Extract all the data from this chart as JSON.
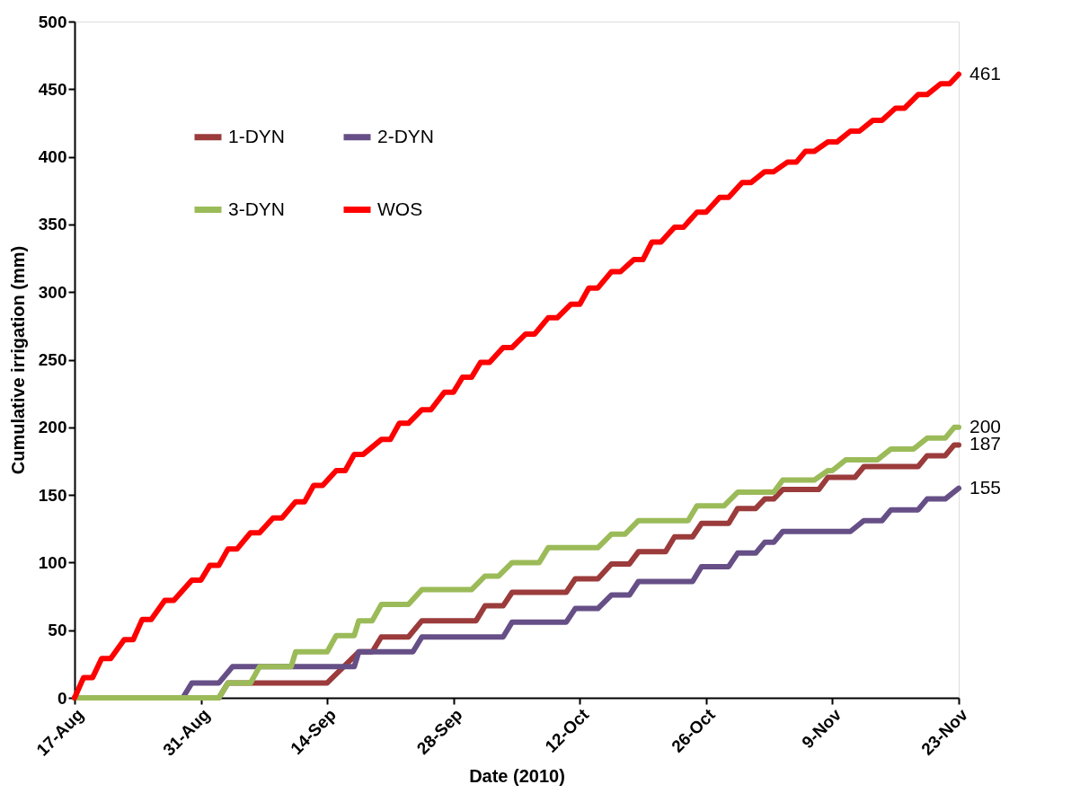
{
  "chart_data": {
    "type": "line",
    "xlabel": "Date (2010)",
    "ylabel": "Cumulative irrigation (mm)",
    "xlim": [
      "2010-08-17",
      "2010-11-23"
    ],
    "xticks": [
      {
        "value": "2010-08-17",
        "label": "17-Aug"
      },
      {
        "value": "2010-08-31",
        "label": "31-Aug"
      },
      {
        "value": "2010-09-14",
        "label": "14-Sep"
      },
      {
        "value": "2010-09-28",
        "label": "28-Sep"
      },
      {
        "value": "2010-10-12",
        "label": "12-Oct"
      },
      {
        "value": "2010-10-26",
        "label": "26-Oct"
      },
      {
        "value": "2010-11-09",
        "label": "9-Nov"
      },
      {
        "value": "2010-11-23",
        "label": "23-Nov"
      }
    ],
    "ylim": [
      0,
      500
    ],
    "yticks": [
      0,
      50,
      100,
      150,
      200,
      250,
      300,
      350,
      400,
      450,
      500
    ],
    "grid": false,
    "legend": "top left",
    "marker": "none",
    "line_style": "solid",
    "series": [
      {
        "name": "1-DYN",
        "color": "#9b3b3b",
        "x": [
          "2010-08-17",
          "2010-09-02",
          "2010-09-03",
          "2010-09-14",
          "2010-09-17T12:00",
          "2010-09-19",
          "2010-09-20",
          "2010-09-23",
          "2010-09-24T12:00",
          "2010-09-30T12:00",
          "2010-10-01T12:00",
          "2010-10-03T12:00",
          "2010-10-04T12:00",
          "2010-10-10T12:00",
          "2010-10-11T12:00",
          "2010-10-14",
          "2010-10-15T12:00",
          "2010-10-17T12:00",
          "2010-10-18T12:00",
          "2010-10-21T12:00",
          "2010-10-22T12:00",
          "2010-10-24T12:00",
          "2010-10-25T12:00",
          "2010-10-28T12:00",
          "2010-10-29T12:00",
          "2010-10-31T12:00",
          "2010-11-01T12:00",
          "2010-11-02T12:00",
          "2010-11-03T12:00",
          "2010-11-07T12:00",
          "2010-11-08T12:00",
          "2010-11-11T12:00",
          "2010-11-12T12:00",
          "2010-11-18T12:00",
          "2010-11-19T12:00",
          "2010-11-21T12:00",
          "2010-11-22T12:00",
          "2010-11-23"
        ],
        "values": [
          0,
          0,
          11,
          11,
          34,
          34,
          45,
          45,
          57,
          57,
          68,
          68,
          78,
          78,
          88,
          88,
          99,
          99,
          108,
          108,
          119,
          119,
          129,
          129,
          140,
          140,
          147,
          147,
          154,
          154,
          163,
          163,
          171,
          171,
          179,
          179,
          187,
          187
        ]
      },
      {
        "name": "2-DYN",
        "color": "#664f86",
        "x": [
          "2010-08-17",
          "2010-08-29",
          "2010-08-30",
          "2010-09-02",
          "2010-09-03T12:00",
          "2010-09-17",
          "2010-09-17T12:00",
          "2010-09-23T12:00",
          "2010-09-24T12:00",
          "2010-10-03T12:00",
          "2010-10-04T12:00",
          "2010-10-10T12:00",
          "2010-10-11T12:00",
          "2010-10-14",
          "2010-10-15T12:00",
          "2010-10-17T12:00",
          "2010-10-18T12:00",
          "2010-10-24T12:00",
          "2010-10-25T12:00",
          "2010-10-28T12:00",
          "2010-10-29T12:00",
          "2010-10-31T12:00",
          "2010-11-01T12:00",
          "2010-11-02T12:00",
          "2010-11-03T12:00",
          "2010-11-11",
          "2010-11-12T12:00",
          "2010-11-14T12:00",
          "2010-11-15T12:00",
          "2010-11-18T12:00",
          "2010-11-19T12:00",
          "2010-11-21T12:00",
          "2010-11-23"
        ],
        "values": [
          0,
          0,
          11,
          11,
          23,
          23,
          34,
          34,
          45,
          45,
          56,
          56,
          66,
          66,
          76,
          76,
          86,
          86,
          97,
          97,
          107,
          107,
          115,
          115,
          123,
          123,
          131,
          131,
          139,
          139,
          147,
          147,
          155
        ]
      },
      {
        "name": "3-DYN",
        "color": "#9bbb59",
        "x": [
          "2010-08-17",
          "2010-09-02",
          "2010-09-03",
          "2010-09-05T12:00",
          "2010-09-06T12:00",
          "2010-09-10",
          "2010-09-10T12:00",
          "2010-09-14",
          "2010-09-15",
          "2010-09-17",
          "2010-09-17T12:00",
          "2010-09-19",
          "2010-09-20",
          "2010-09-23",
          "2010-09-24T12:00",
          "2010-09-30",
          "2010-10-01T12:00",
          "2010-10-03",
          "2010-10-04T12:00",
          "2010-10-07T12:00",
          "2010-10-08T12:00",
          "2010-10-14",
          "2010-10-15T12:00",
          "2010-10-17",
          "2010-10-18T12:00",
          "2010-10-24",
          "2010-10-25",
          "2010-10-28",
          "2010-10-29T12:00",
          "2010-11-02T12:00",
          "2010-11-03T12:00",
          "2010-11-07",
          "2010-11-08T12:00",
          "2010-11-09",
          "2010-11-10T12:00",
          "2010-11-14",
          "2010-11-15T12:00",
          "2010-11-18",
          "2010-11-19T12:00",
          "2010-11-21T12:00",
          "2010-11-22T12:00",
          "2010-11-23"
        ],
        "values": [
          0,
          0,
          11,
          11,
          23,
          23,
          34,
          34,
          46,
          46,
          57,
          57,
          69,
          69,
          80,
          80,
          90,
          90,
          100,
          100,
          111,
          111,
          121,
          121,
          131,
          131,
          142,
          142,
          152,
          152,
          161,
          161,
          168,
          168,
          176,
          176,
          184,
          184,
          192,
          192,
          200,
          200
        ]
      },
      {
        "name": "WOS",
        "color": "#ff0000",
        "x": [
          "2010-08-17",
          "2010-08-18",
          "2010-08-19",
          "2010-08-20",
          "2010-08-21",
          "2010-08-22T12:00",
          "2010-08-23T12:00",
          "2010-08-24T12:00",
          "2010-08-25T12:00",
          "2010-08-27",
          "2010-08-28",
          "2010-08-30",
          "2010-08-31",
          "2010-09-01",
          "2010-09-02",
          "2010-09-03",
          "2010-09-04",
          "2010-09-05T12:00",
          "2010-09-06T12:00",
          "2010-09-08",
          "2010-09-09",
          "2010-09-10T12:00",
          "2010-09-11T12:00",
          "2010-09-12T12:00",
          "2010-09-13T12:00",
          "2010-09-15",
          "2010-09-16",
          "2010-09-17",
          "2010-09-18",
          "2010-09-20",
          "2010-09-21",
          "2010-09-22",
          "2010-09-23",
          "2010-09-24T12:00",
          "2010-09-25T12:00",
          "2010-09-27",
          "2010-09-28",
          "2010-09-29",
          "2010-09-30",
          "2010-10-01",
          "2010-10-02",
          "2010-10-03T12:00",
          "2010-10-04T12:00",
          "2010-10-06",
          "2010-10-07",
          "2010-10-08T12:00",
          "2010-10-09T12:00",
          "2010-10-11",
          "2010-10-12",
          "2010-10-13",
          "2010-10-14",
          "2010-10-15T12:00",
          "2010-10-16T12:00",
          "2010-10-18",
          "2010-10-19",
          "2010-10-20",
          "2010-10-21",
          "2010-10-22T12:00",
          "2010-10-23T12:00",
          "2010-10-25",
          "2010-10-26",
          "2010-10-27T12:00",
          "2010-10-28T12:00",
          "2010-10-30",
          "2010-10-31",
          "2010-11-01T12:00",
          "2010-11-02T12:00",
          "2010-11-04",
          "2010-11-05",
          "2010-11-06",
          "2010-11-07",
          "2010-11-08T12:00",
          "2010-11-09T12:00",
          "2010-11-11",
          "2010-11-12",
          "2010-11-13T12:00",
          "2010-11-14T12:00",
          "2010-11-16",
          "2010-11-17",
          "2010-11-18T12:00",
          "2010-11-19T12:00",
          "2010-11-21",
          "2010-11-22",
          "2010-11-23"
        ],
        "values": [
          0,
          15,
          15,
          29,
          29,
          43,
          43,
          58,
          58,
          72,
          72,
          87,
          87,
          98,
          98,
          110,
          110,
          122,
          122,
          133,
          133,
          145,
          145,
          157,
          157,
          168,
          168,
          180,
          180,
          191,
          191,
          203,
          203,
          213,
          213,
          226,
          226,
          237,
          237,
          248,
          248,
          259,
          259,
          269,
          269,
          281,
          281,
          291,
          291,
          303,
          303,
          315,
          315,
          324,
          324,
          337,
          337,
          348,
          348,
          359,
          359,
          370,
          370,
          381,
          381,
          389,
          389,
          396,
          396,
          404,
          404,
          411,
          411,
          419,
          419,
          427,
          427,
          436,
          436,
          446,
          446,
          454,
          454,
          461
        ]
      }
    ],
    "annotations": [
      {
        "text": "461",
        "x": "2010-11-23",
        "y": 461
      },
      {
        "text": "200",
        "x": "2010-11-23",
        "y": 200
      },
      {
        "text": "187",
        "x": "2010-11-23",
        "y": 187
      },
      {
        "text": "155",
        "x": "2010-11-23",
        "y": 155
      }
    ]
  }
}
